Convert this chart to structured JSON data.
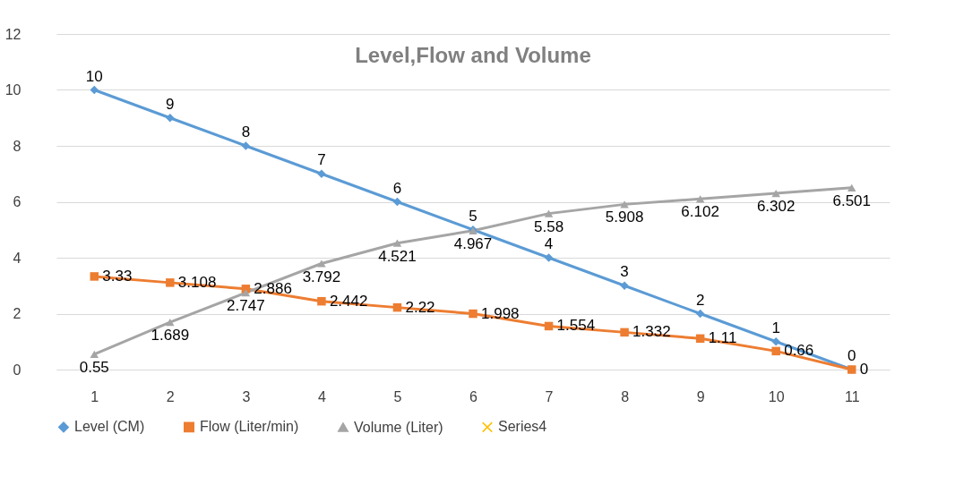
{
  "chart_data": {
    "type": "line",
    "title": "Level,Flow and Volume",
    "categories": [
      "1",
      "2",
      "3",
      "4",
      "5",
      "6",
      "7",
      "8",
      "9",
      "10",
      "11"
    ],
    "series": [
      {
        "name": "Level (CM)",
        "color": "#5b9bd5",
        "marker": "diamond",
        "values": [
          10,
          9,
          8,
          7,
          6,
          5,
          4,
          3,
          2,
          1,
          0
        ]
      },
      {
        "name": "Flow (Liter/min)",
        "color": "#ed7d31",
        "marker": "square",
        "values": [
          3.33,
          3.108,
          2.886,
          2.442,
          2.22,
          1.998,
          1.554,
          1.332,
          1.11,
          0.66,
          0
        ]
      },
      {
        "name": "Volume (Liter)",
        "color": "#a5a5a5",
        "marker": "triangle",
        "values": [
          0.55,
          1.689,
          2.747,
          3.792,
          4.521,
          4.967,
          5.58,
          5.908,
          6.102,
          6.302,
          6.501
        ]
      },
      {
        "name": "Series4",
        "color": "#ffc000",
        "marker": "cross",
        "values": [
          null,
          null,
          null,
          null,
          null,
          null,
          null,
          null,
          null,
          null,
          null
        ]
      }
    ],
    "ylim": [
      0,
      12
    ],
    "yticks": [
      0,
      2,
      4,
      6,
      8,
      10,
      12
    ],
    "grid": "y",
    "legend": "bottom",
    "data_labels": true
  }
}
